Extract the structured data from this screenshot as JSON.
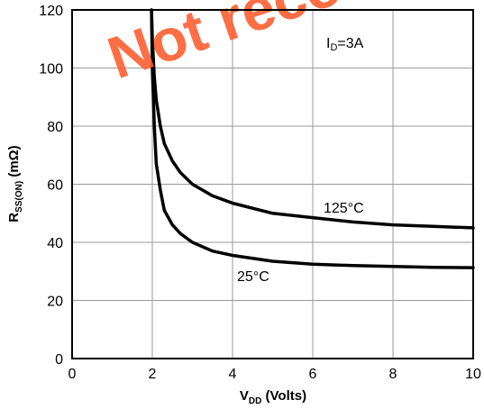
{
  "watermark": "Not recommended",
  "chart_data": {
    "type": "line",
    "xlabel": {
      "main": "V",
      "sub": "DD",
      "rest": " (Volts)"
    },
    "ylabel": {
      "main": "R",
      "sub": "SS(ON)",
      "rest": " (mΩ)"
    },
    "xlim": [
      0,
      10
    ],
    "ylim": [
      0,
      120
    ],
    "x_ticks": [
      "0",
      "2",
      "4",
      "6",
      "8",
      "10"
    ],
    "y_ticks": [
      "0",
      "20",
      "40",
      "60",
      "80",
      "100",
      "120"
    ],
    "grid": true,
    "annotation": {
      "main": "I",
      "sub": "D",
      "rest": "=3A"
    },
    "series": [
      {
        "name": "125°C",
        "x": [
          1.98,
          2.0,
          2.05,
          2.1,
          2.2,
          2.3,
          2.5,
          2.7,
          3.0,
          3.5,
          4.0,
          5.0,
          6.0,
          7.0,
          8.0,
          9.0,
          10.0
        ],
        "y": [
          120,
          110,
          97,
          89,
          80,
          74,
          68,
          64,
          60,
          56,
          53.5,
          50,
          48.5,
          47,
          46,
          45.5,
          45
        ]
      },
      {
        "name": "25°C",
        "x": [
          1.98,
          2.0,
          2.05,
          2.1,
          2.2,
          2.3,
          2.5,
          2.7,
          3.0,
          3.5,
          4.0,
          5.0,
          6.0,
          7.0,
          8.0,
          9.0,
          10.0
        ],
        "y": [
          120,
          100,
          80,
          67,
          58,
          51,
          46,
          43,
          40,
          37,
          35.5,
          33.5,
          32.5,
          32,
          31.7,
          31.4,
          31.3
        ]
      }
    ]
  }
}
